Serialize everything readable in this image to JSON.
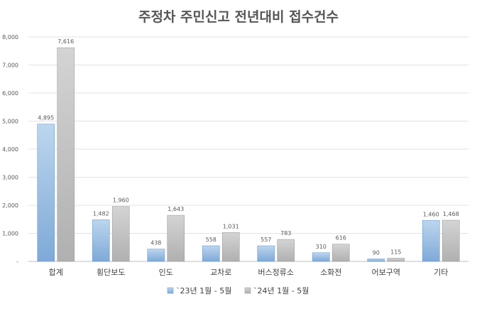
{
  "chart_data": {
    "type": "bar",
    "title": "주정차 주민신고 전년대비 접수건수",
    "categories": [
      "합계",
      "횡단보도",
      "인도",
      "교차로",
      "버스정류소",
      "소화전",
      "어보구역",
      "기타"
    ],
    "series": [
      {
        "name": "`23년 1월 - 5월",
        "values": [
          4895,
          1482,
          438,
          558,
          557,
          310,
          90,
          1460
        ],
        "labels": [
          "4,895",
          "1,482",
          "438",
          "558",
          "557",
          "310",
          "90",
          "1,460"
        ],
        "color": "#9dc3e6"
      },
      {
        "name": "`24년 1월 - 5월",
        "values": [
          7616,
          1960,
          1643,
          1031,
          783,
          616,
          115,
          1468
        ],
        "labels": [
          "7,616",
          "1,960",
          "1,643",
          "1,031",
          "783",
          "616",
          "115",
          "1,468"
        ],
        "color": "#c0c0c0"
      }
    ],
    "ylim": [
      0,
      8000
    ],
    "yticks": [
      {
        "value": 0,
        "label": "-"
      },
      {
        "value": 1000,
        "label": "1,000"
      },
      {
        "value": 2000,
        "label": "2,000"
      },
      {
        "value": 3000,
        "label": "3,000"
      },
      {
        "value": 4000,
        "label": "4,000"
      },
      {
        "value": 5000,
        "label": "5,000"
      },
      {
        "value": 6000,
        "label": "6,000"
      },
      {
        "value": 7000,
        "label": "7,000"
      },
      {
        "value": 8000,
        "label": "8,000"
      }
    ],
    "grid": true,
    "legend_position": "bottom"
  }
}
